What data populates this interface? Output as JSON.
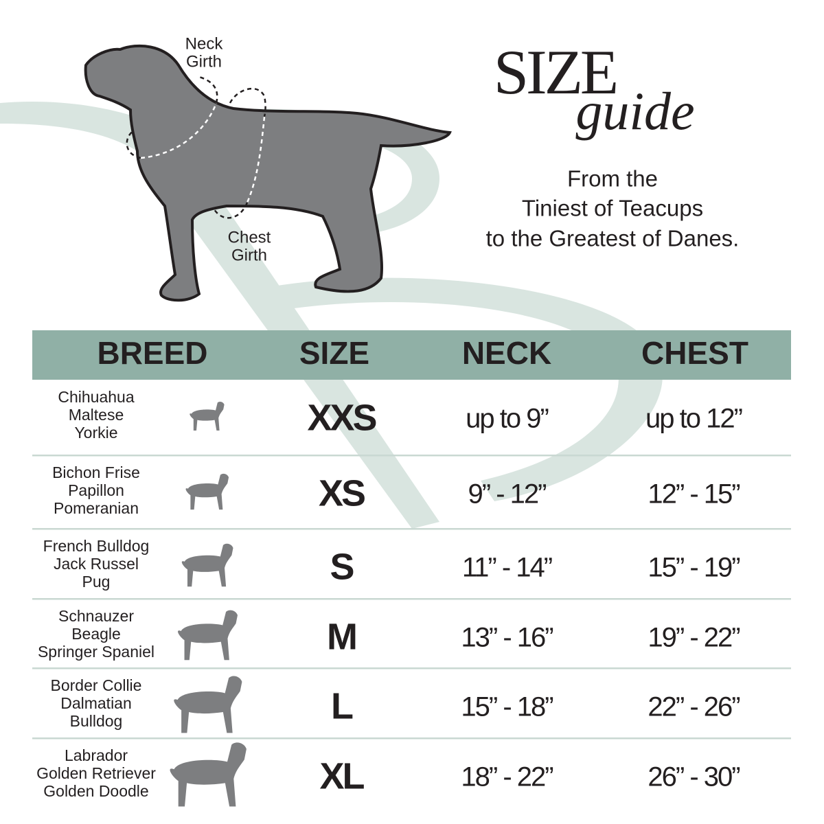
{
  "diagram": {
    "neck_label": [
      "Neck",
      "Girth"
    ],
    "chest_label": [
      "Chest",
      "Girth"
    ]
  },
  "header": {
    "title": "SIZE",
    "subtitle": "guide",
    "tagline": [
      "From the",
      "Tiniest of Teacups",
      "to the Greatest of Danes."
    ]
  },
  "table": {
    "columns": [
      "BREED",
      "SIZE",
      "NECK",
      "CHEST"
    ],
    "rows": [
      {
        "breeds": [
          "Chihuahua",
          "Maltese",
          "Yorkie"
        ],
        "size": "XXS",
        "neck": "up to 9”",
        "chest": "up to 12”"
      },
      {
        "breeds": [
          "Bichon Frise",
          "Papillon",
          "Pomeranian"
        ],
        "size": "XS",
        "neck": "9” - 12”",
        "chest": "12” - 15”"
      },
      {
        "breeds": [
          "French Bulldog",
          "Jack Russel",
          "Pug"
        ],
        "size": "S",
        "neck": "11” - 14”",
        "chest": "15” - 19”"
      },
      {
        "breeds": [
          "Schnauzer",
          "Beagle",
          "Springer Spaniel"
        ],
        "size": "M",
        "neck": "13” - 16”",
        "chest": "19” - 22”"
      },
      {
        "breeds": [
          "Border Collie",
          "Dalmatian",
          "Bulldog"
        ],
        "size": "L",
        "neck": "15” - 18”",
        "chest": "22” - 26”"
      },
      {
        "breeds": [
          "Labrador",
          "Golden Retriever",
          "Golden Doodle"
        ],
        "size": "XL",
        "neck": "18” - 22”",
        "chest": "26” - 30”"
      }
    ]
  }
}
